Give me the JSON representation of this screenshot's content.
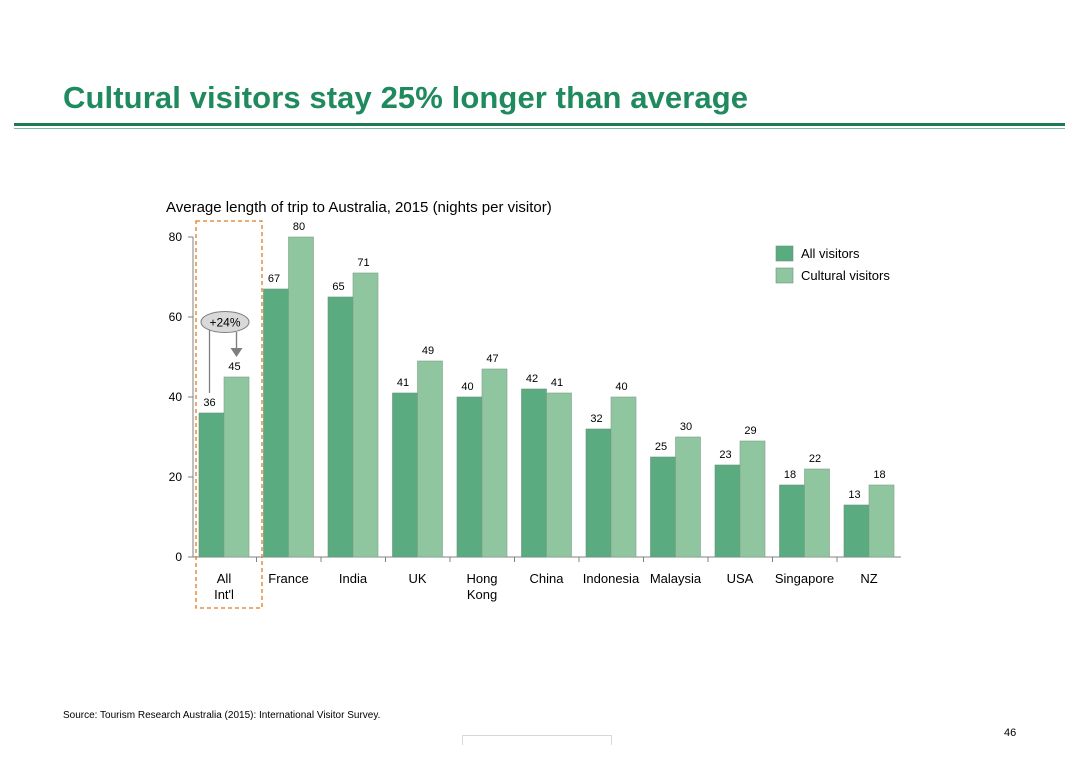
{
  "page": {
    "title": "Cultural visitors stay 25% longer than average",
    "source": "Source: Tourism Research Australia (2015): International Visitor Survey.",
    "page_number": "46"
  },
  "colors": {
    "title": "#1e8a5e",
    "all_visitors": "#5aab80",
    "cultural_visitors": "#8fc59f",
    "highlight_box": "#e07b1f",
    "callout_fill": "#d9d9d9",
    "arrow": "#7f7f7f"
  },
  "annotation": {
    "callout_text": "+24%",
    "highlight_category": "All Int'l"
  },
  "chart_data": {
    "type": "bar",
    "title": "Average length of trip to Australia, 2015 (nights per visitor)",
    "xlabel": "",
    "ylabel": "",
    "ylim": [
      0,
      80
    ],
    "yticks": [
      0,
      20,
      40,
      60,
      80
    ],
    "grid": false,
    "legend_position": "top-right",
    "categories": [
      "All\nInt'l",
      "France",
      "India",
      "UK",
      "Hong\nKong",
      "China",
      "Indonesia",
      "Malaysia",
      "USA",
      "Singapore",
      "NZ"
    ],
    "series": [
      {
        "name": "All visitors",
        "values": [
          36,
          67,
          65,
          41,
          40,
          42,
          32,
          25,
          23,
          18,
          13
        ]
      },
      {
        "name": "Cultural visitors",
        "values": [
          45,
          80,
          71,
          49,
          47,
          41,
          40,
          30,
          29,
          22,
          18
        ]
      }
    ]
  }
}
